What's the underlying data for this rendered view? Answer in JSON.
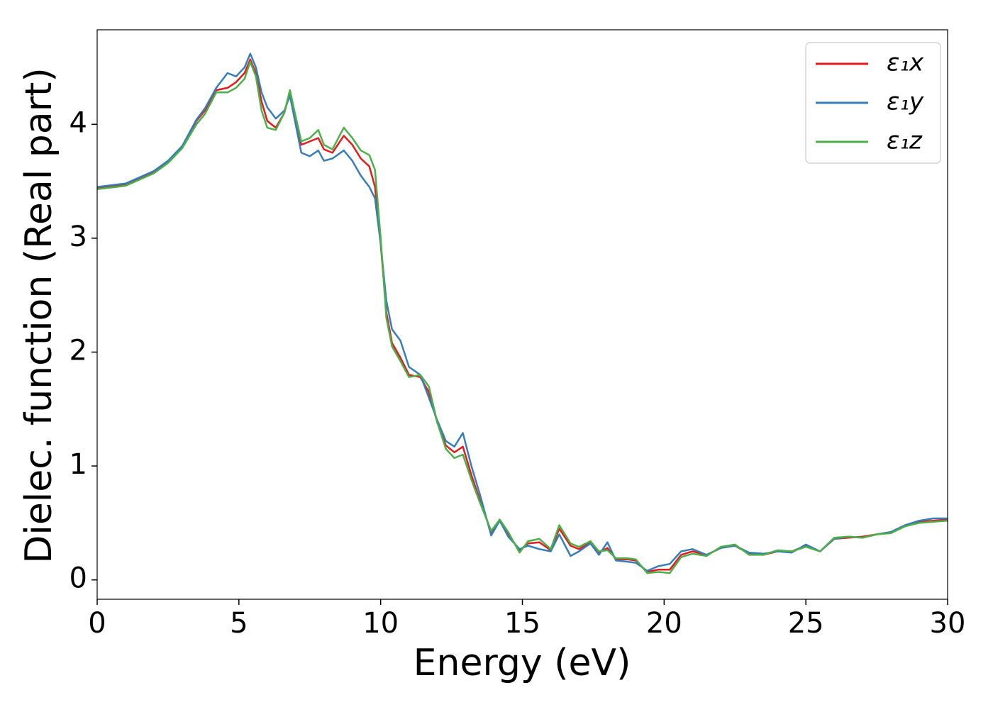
{
  "chart_data": {
    "type": "line",
    "xlabel": "Energy (eV)",
    "ylabel": "Dielec. function (Real part)",
    "x": [
      0,
      1,
      2,
      2.5,
      3,
      3.5,
      3.8,
      4.2,
      4.6,
      4.9,
      5.2,
      5.4,
      5.6,
      5.8,
      6.0,
      6.3,
      6.6,
      6.8,
      7.0,
      7.2,
      7.5,
      7.8,
      8.0,
      8.3,
      8.7,
      9.0,
      9.3,
      9.6,
      9.8,
      10.0,
      10.2,
      10.4,
      10.7,
      11.0,
      11.4,
      11.7,
      12.0,
      12.3,
      12.6,
      12.9,
      13.2,
      13.5,
      13.9,
      14.2,
      14.5,
      14.9,
      15.2,
      15.6,
      16.0,
      16.3,
      16.7,
      17.0,
      17.4,
      17.7,
      18.0,
      18.3,
      18.7,
      19.0,
      19.4,
      19.8,
      20.2,
      20.6,
      21.0,
      21.5,
      22.0,
      22.5,
      23.0,
      23.5,
      24.0,
      24.5,
      25.0,
      25.5,
      26.0,
      26.5,
      27.0,
      27.5,
      28.0,
      28.5,
      29.0,
      29.5,
      30.0
    ],
    "series": [
      {
        "name": "ε₁x",
        "color": "#e41a1c",
        "values": [
          3.44,
          3.47,
          3.58,
          3.67,
          3.8,
          4.03,
          4.12,
          4.3,
          4.32,
          4.37,
          4.45,
          4.57,
          4.45,
          4.2,
          4.03,
          3.97,
          4.1,
          4.28,
          4.05,
          3.82,
          3.85,
          3.88,
          3.78,
          3.75,
          3.9,
          3.82,
          3.7,
          3.63,
          3.45,
          2.95,
          2.35,
          2.08,
          1.95,
          1.8,
          1.78,
          1.65,
          1.38,
          1.18,
          1.12,
          1.17,
          0.92,
          0.7,
          0.42,
          0.52,
          0.4,
          0.26,
          0.32,
          0.33,
          0.26,
          0.45,
          0.3,
          0.27,
          0.33,
          0.24,
          0.28,
          0.18,
          0.18,
          0.17,
          0.07,
          0.09,
          0.09,
          0.22,
          0.25,
          0.22,
          0.28,
          0.3,
          0.23,
          0.22,
          0.25,
          0.25,
          0.3,
          0.25,
          0.36,
          0.37,
          0.38,
          0.4,
          0.42,
          0.48,
          0.51,
          0.52,
          0.53
        ]
      },
      {
        "name": "ε₁y",
        "color": "#377eb8",
        "values": [
          3.45,
          3.48,
          3.59,
          3.68,
          3.81,
          4.04,
          4.14,
          4.32,
          4.45,
          4.42,
          4.5,
          4.62,
          4.5,
          4.28,
          4.15,
          4.05,
          4.12,
          4.25,
          4.0,
          3.75,
          3.72,
          3.77,
          3.68,
          3.7,
          3.77,
          3.68,
          3.55,
          3.45,
          3.35,
          2.95,
          2.45,
          2.2,
          2.1,
          1.87,
          1.8,
          1.6,
          1.4,
          1.22,
          1.17,
          1.29,
          1.0,
          0.75,
          0.39,
          0.52,
          0.38,
          0.27,
          0.3,
          0.27,
          0.25,
          0.4,
          0.21,
          0.25,
          0.32,
          0.22,
          0.33,
          0.17,
          0.16,
          0.15,
          0.08,
          0.12,
          0.14,
          0.25,
          0.27,
          0.22,
          0.28,
          0.3,
          0.24,
          0.23,
          0.25,
          0.24,
          0.31,
          0.25,
          0.36,
          0.38,
          0.37,
          0.4,
          0.42,
          0.48,
          0.52,
          0.54,
          0.54
        ]
      },
      {
        "name": "ε₁z",
        "color": "#4daf4a",
        "values": [
          3.43,
          3.46,
          3.57,
          3.66,
          3.79,
          4.0,
          4.09,
          4.28,
          4.28,
          4.32,
          4.4,
          4.55,
          4.42,
          4.12,
          3.97,
          3.95,
          4.1,
          4.3,
          4.07,
          3.85,
          3.88,
          3.95,
          3.82,
          3.78,
          3.97,
          3.88,
          3.77,
          3.73,
          3.6,
          3.0,
          2.3,
          2.05,
          1.92,
          1.78,
          1.8,
          1.7,
          1.38,
          1.15,
          1.07,
          1.1,
          0.88,
          0.68,
          0.43,
          0.53,
          0.42,
          0.24,
          0.34,
          0.36,
          0.27,
          0.48,
          0.32,
          0.29,
          0.34,
          0.25,
          0.26,
          0.19,
          0.19,
          0.18,
          0.06,
          0.07,
          0.06,
          0.2,
          0.23,
          0.21,
          0.29,
          0.31,
          0.22,
          0.22,
          0.26,
          0.25,
          0.29,
          0.25,
          0.37,
          0.38,
          0.37,
          0.4,
          0.41,
          0.47,
          0.5,
          0.51,
          0.52
        ]
      }
    ],
    "xlim": [
      0,
      30
    ],
    "xticks": [
      0,
      5,
      10,
      15,
      20,
      25,
      30
    ],
    "ylim": [
      -0.17,
      4.83
    ],
    "yticks": [
      0,
      1,
      2,
      3,
      4
    ],
    "grid": false,
    "legend": "upper right"
  }
}
